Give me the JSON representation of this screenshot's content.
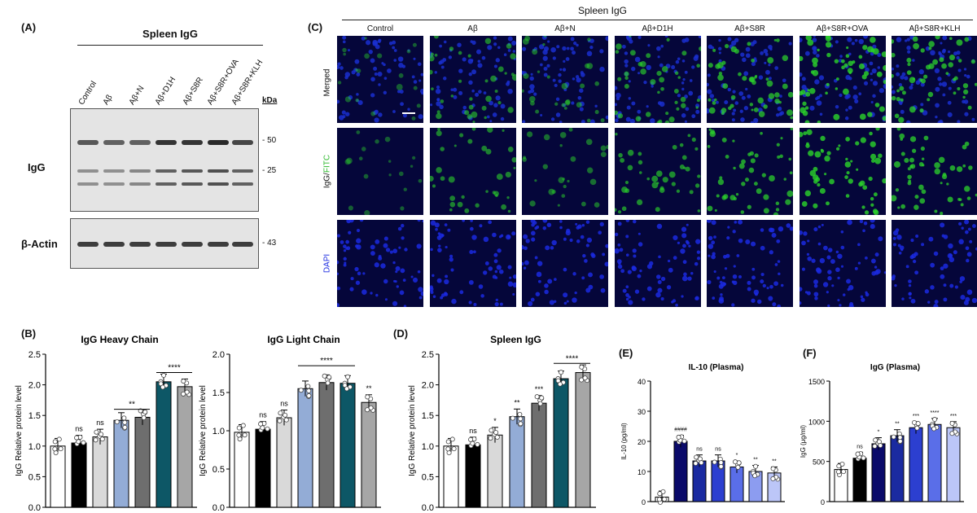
{
  "panelA": {
    "label": "(A)",
    "title": "Spleen IgG",
    "lanes": [
      "Control",
      "Aβ",
      "Aβ+N",
      "Aβ+D1H",
      "Aβ+S8R",
      "Aβ+S8R+OVA",
      "Aβ+S8R+KLH"
    ],
    "kda_label": "kDa",
    "row_igg": "IgG",
    "row_actin": "β-Actin",
    "markers": [
      "- 50",
      "- 25",
      "- 43"
    ]
  },
  "panelC": {
    "label": "(C)",
    "title": "Spleen IgG",
    "columns": [
      "Control",
      "Aβ",
      "Aβ+N",
      "Aβ+D1H",
      "Aβ+S8R",
      "Aβ+S8R+OVA",
      "Aβ+S8R+KLH"
    ],
    "rows": [
      "Merged",
      "IgG/FITC",
      "DAPI"
    ],
    "row_igg_part": "IgG/",
    "row_fitc_part": "FITC",
    "colors": {
      "merged": "#1a2fd0",
      "fitc": "#2bd12b",
      "dapi": "#1b2ae0",
      "bg": "#05063a"
    }
  },
  "chart_data": [
    {
      "panel": "(B)",
      "type": "bar",
      "title": "IgG Heavy Chain",
      "ylabel": "IgG Relative protein level",
      "ylim": [
        0,
        2.5
      ],
      "yticks": [
        "0.0",
        "0.5",
        "1.0",
        "1.5",
        "2.0",
        "2.5"
      ],
      "values": [
        1.0,
        1.05,
        1.15,
        1.42,
        1.47,
        2.05,
        1.97
      ],
      "colors": [
        "#ffffff",
        "#000000",
        "#d9d9d9",
        "#93acd6",
        "#6e6e6e",
        "#0d5766",
        "#a6a6a6"
      ],
      "labels": [
        "",
        "ns",
        "ns",
        "",
        "",
        "",
        ""
      ],
      "brackets": [
        {
          "from": 3,
          "to": 4,
          "y": 1.6,
          "text": "**"
        },
        {
          "from": 5,
          "to": 6,
          "y": 2.2,
          "text": "****"
        }
      ]
    },
    {
      "panel": "",
      "type": "bar",
      "title": "IgG Light Chain",
      "ylabel": "IgG Relative protein level",
      "ylim": [
        0,
        2.0
      ],
      "yticks": [
        "0.0",
        "0.5",
        "1.0",
        "1.5",
        "2.0"
      ],
      "values": [
        0.98,
        1.02,
        1.17,
        1.55,
        1.63,
        1.62,
        1.37
      ],
      "colors": [
        "#ffffff",
        "#000000",
        "#d9d9d9",
        "#93acd6",
        "#6e6e6e",
        "#0d5766",
        "#a6a6a6"
      ],
      "labels": [
        "",
        "ns",
        "ns",
        "",
        "",
        "",
        "**"
      ],
      "brackets": [
        {
          "from": 3,
          "to": 5,
          "y": 1.85,
          "text": "****"
        }
      ]
    },
    {
      "panel": "(D)",
      "type": "bar",
      "title": "Spleen IgG",
      "ylabel": "IgG Relative protein level",
      "ylim": [
        0,
        2.5
      ],
      "yticks": [
        "0.0",
        "0.5",
        "1.0",
        "1.5",
        "2.0",
        "2.5"
      ],
      "values": [
        1.0,
        1.02,
        1.18,
        1.48,
        1.7,
        2.1,
        2.2
      ],
      "colors": [
        "#ffffff",
        "#000000",
        "#d9d9d9",
        "#93acd6",
        "#6e6e6e",
        "#0d5766",
        "#a6a6a6"
      ],
      "labels": [
        "",
        "ns",
        "*",
        "**",
        "***",
        "",
        ""
      ],
      "brackets": [
        {
          "from": 5,
          "to": 6,
          "y": 2.35,
          "text": "****"
        }
      ]
    },
    {
      "panel": "(E)",
      "type": "bar",
      "title": "IL-10 (Plasma)",
      "ylabel": "IL-10 (pg/ml)",
      "ylim": [
        0,
        40
      ],
      "yticks": [
        "0",
        "10",
        "20",
        "30",
        "40"
      ],
      "values": [
        1.5,
        20,
        13.5,
        13.5,
        11.5,
        10,
        9.5
      ],
      "colors": [
        "#ffffff",
        "#0a0a6a",
        "#1a2aa0",
        "#2c3fd0",
        "#5a6ee8",
        "#8c9cf0",
        "#bcc6f8"
      ],
      "labels": [
        "",
        "####",
        "ns",
        "ns",
        "*",
        "**",
        "**"
      ],
      "brackets": []
    },
    {
      "panel": "(F)",
      "type": "bar",
      "title": "IgG (Plasma)",
      "ylabel": "IgG (μg/ml)",
      "ylim": [
        0,
        1500
      ],
      "yticks": [
        "0",
        "500",
        "1000",
        "1500"
      ],
      "values": [
        400,
        540,
        720,
        820,
        920,
        960,
        920
      ],
      "colors": [
        "#ffffff",
        "#000000",
        "#0a0a6a",
        "#1a2aa0",
        "#2c3fd0",
        "#5a6ee8",
        "#bcc6f8"
      ],
      "labels": [
        "",
        "ns",
        "*",
        "**",
        "***",
        "****",
        "***"
      ],
      "brackets": []
    }
  ]
}
